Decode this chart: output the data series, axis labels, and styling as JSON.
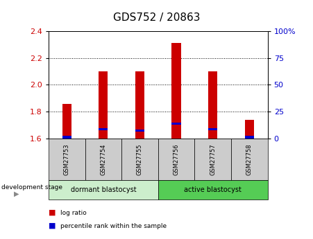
{
  "title": "GDS752 / 20863",
  "samples": [
    "GSM27753",
    "GSM27754",
    "GSM27755",
    "GSM27756",
    "GSM27757",
    "GSM27758"
  ],
  "log_ratio_top": [
    1.86,
    2.1,
    2.1,
    2.31,
    2.1,
    1.74
  ],
  "log_ratio_bottom": [
    1.6,
    1.6,
    1.6,
    1.6,
    1.6,
    1.6
  ],
  "percentile_rank": [
    1.61,
    1.67,
    1.66,
    1.71,
    1.67,
    1.61
  ],
  "ylim": [
    1.6,
    2.4
  ],
  "yticks": [
    1.6,
    1.8,
    2.0,
    2.2,
    2.4
  ],
  "right_yticks": [
    0,
    25,
    50,
    75,
    100
  ],
  "right_ylim": [
    0,
    100
  ],
  "bar_color": "#cc0000",
  "percentile_color": "#0000cc",
  "left_axis_color": "#cc0000",
  "right_axis_color": "#0000cc",
  "groups": [
    {
      "label": "dormant blastocyst",
      "start": 0,
      "end": 3,
      "color": "#cceecc"
    },
    {
      "label": "active blastocyst",
      "start": 3,
      "end": 6,
      "color": "#55cc55"
    }
  ],
  "group_label": "development stage",
  "legend_log_ratio": "log ratio",
  "legend_percentile": "percentile rank within the sample",
  "bar_width": 0.25,
  "sample_box_color": "#cccccc",
  "title_fontsize": 11,
  "tick_fontsize": 8,
  "label_fontsize": 7
}
